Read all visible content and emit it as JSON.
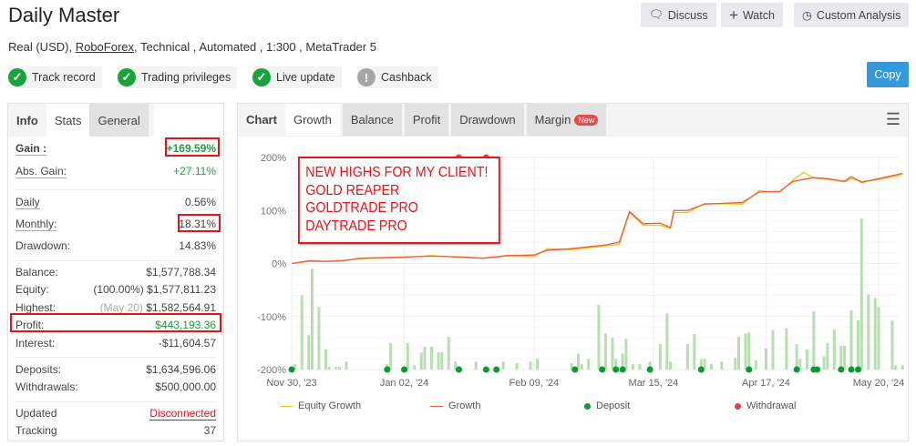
{
  "header": {
    "title": "Daily Master",
    "discuss": "Discuss",
    "watch": "Watch",
    "custom_analysis": "Custom Analysis",
    "sub_prefix": "Real (USD),",
    "broker": "RoboForex",
    "sub_suffix": ", Technical , Automated , 1:300 , MetaTrader 5",
    "badges": [
      {
        "label": "Track record",
        "status": "ok"
      },
      {
        "label": "Trading privileges",
        "status": "ok"
      },
      {
        "label": "Live update",
        "status": "ok"
      },
      {
        "label": "Cashback",
        "status": "warn"
      }
    ],
    "copy": "Copy"
  },
  "colors": {
    "green": "#1aa33a",
    "red": "#e3141b",
    "copy_blue": "#3598db",
    "equity": "#f7c21b",
    "growth": "#ef5a3c",
    "bars": "#b6dfae"
  },
  "stats": {
    "tabs": [
      "Info",
      "Stats",
      "General"
    ],
    "gain_label": "Gain :",
    "gain": "+169.59%",
    "abs_gain_label": "Abs. Gain:",
    "abs_gain": "+27.11%",
    "daily_label": "Daily",
    "daily": "0.56%",
    "monthly_label": "Monthly:",
    "monthly": "18.31%",
    "drawdown_label": "Drawdown:",
    "drawdown": "14.83%",
    "balance_label": "Balance:",
    "balance": "$1,577,788.34",
    "equity_label": "Equity:",
    "equity_pct": "(100.00%)",
    "equity": "$1,577,811.23",
    "highest_label": "Highest:",
    "highest_date": "(May 20)",
    "highest": "$1,582,564.91",
    "profit_label": "Profit:",
    "profit": "$443,193.36",
    "interest_label": "Interest:",
    "interest": "-$11,604.57",
    "deposits_label": "Deposits:",
    "deposits": "$1,634,596.06",
    "withdrawals_label": "Withdrawals:",
    "withdrawals": "$500,000.00",
    "updated_label": "Updated",
    "updated": "Disconnected",
    "tracking_label": "Tracking",
    "tracking": "37"
  },
  "chart_tabs": {
    "chart": "Chart",
    "growth": "Growth",
    "balance": "Balance",
    "profit": "Profit",
    "drawdown": "Drawdown",
    "margin": "Margin",
    "new": "New"
  },
  "annotation": [
    "NEW HIGHS FOR MY CLIENT!",
    "GOLD REAPER",
    "GOLDTRADE PRO",
    "DAYTRADE PRO"
  ],
  "chart_data": {
    "type": "line",
    "ylim": [
      -200,
      200
    ],
    "grid": true,
    "legend": "bottom",
    "yticks": [
      "200%",
      "100%",
      "0%",
      "-100%",
      "-200%"
    ],
    "ytick_values": [
      200,
      100,
      0,
      -100,
      -200
    ],
    "xticks": [
      "Nov 30, '23",
      "Jan 02, '24",
      "Feb 09, '24",
      "Mar 15, '24",
      "Apr 17, '24",
      "May 20, '24"
    ],
    "xtick_dates": [
      "2023-11-30",
      "2024-01-02",
      "2024-02-09",
      "2024-03-15",
      "2024-04-17",
      "2024-05-20"
    ],
    "series": [
      {
        "name": "Growth",
        "x": [
          "2023-11-30",
          "2023-12-05",
          "2023-12-10",
          "2023-12-15",
          "2023-12-20",
          "2024-01-01",
          "2024-01-10",
          "2024-01-20",
          "2024-01-25",
          "2024-02-01",
          "2024-02-09",
          "2024-02-13",
          "2024-02-20",
          "2024-03-01",
          "2024-03-05",
          "2024-03-08",
          "2024-03-12",
          "2024-03-17",
          "2024-03-20",
          "2024-03-21",
          "2024-03-25",
          "2024-03-30",
          "2024-04-10",
          "2024-04-15",
          "2024-04-21",
          "2024-04-25",
          "2024-05-01",
          "2024-05-05",
          "2024-05-10",
          "2024-05-12",
          "2024-05-15",
          "2024-05-20",
          "2024-05-27"
        ],
        "y": [
          0,
          5,
          4,
          5,
          10,
          12,
          14,
          12,
          10,
          15,
          16,
          25,
          28,
          35,
          40,
          98,
          75,
          76,
          68,
          100,
          100,
          112,
          115,
          135,
          136,
          155,
          162,
          160,
          155,
          164,
          153,
          160,
          170
        ]
      },
      {
        "name": "Equity Growth",
        "x": [
          "2023-11-30",
          "2023-12-05",
          "2023-12-10",
          "2023-12-15",
          "2023-12-20",
          "2024-01-01",
          "2024-01-10",
          "2024-01-20",
          "2024-01-25",
          "2024-02-01",
          "2024-02-09",
          "2024-02-13",
          "2024-02-20",
          "2024-03-01",
          "2024-03-05",
          "2024-03-08",
          "2024-03-12",
          "2024-03-17",
          "2024-03-20",
          "2024-03-21",
          "2024-03-25",
          "2024-03-30",
          "2024-04-10",
          "2024-04-15",
          "2024-04-21",
          "2024-04-25",
          "2024-04-28",
          "2024-05-01",
          "2024-05-05",
          "2024-05-10",
          "2024-05-12",
          "2024-05-15",
          "2024-05-20",
          "2024-05-27"
        ],
        "y": [
          0,
          4,
          4,
          6,
          9,
          11,
          15,
          11,
          10,
          14,
          13,
          28,
          26,
          33,
          36,
          96,
          72,
          72,
          66,
          96,
          96,
          113,
          112,
          137,
          134,
          158,
          172,
          161,
          159,
          154,
          160,
          155,
          158,
          168
        ]
      }
    ],
    "bars": {
      "x": [
        "2023-12-01",
        "2023-12-03",
        "2023-12-05",
        "2023-12-06",
        "2023-12-08",
        "2023-12-10",
        "2023-12-11",
        "2023-12-13",
        "2023-12-14",
        "2023-12-16",
        "2023-12-28",
        "2023-12-29",
        "2024-01-03",
        "2024-01-05",
        "2024-01-07",
        "2024-01-08",
        "2024-01-10",
        "2024-01-12",
        "2024-01-13",
        "2024-01-15",
        "2024-01-17",
        "2024-01-23",
        "2024-01-31",
        "2024-02-04",
        "2024-02-08",
        "2024-02-10",
        "2024-02-20",
        "2024-02-22",
        "2024-02-23",
        "2024-02-25",
        "2024-02-28",
        "2024-03-01",
        "2024-03-03",
        "2024-03-04",
        "2024-03-06",
        "2024-03-07",
        "2024-03-09",
        "2024-03-11",
        "2024-03-14",
        "2024-03-17",
        "2024-03-19",
        "2024-03-20",
        "2024-03-25",
        "2024-03-27",
        "2024-03-29",
        "2024-03-30",
        "2024-04-01",
        "2024-04-04",
        "2024-04-08",
        "2024-04-09",
        "2024-04-11",
        "2024-04-12",
        "2024-04-14",
        "2024-04-17",
        "2024-04-19",
        "2024-04-23",
        "2024-04-26",
        "2024-04-27",
        "2024-04-29",
        "2024-05-01",
        "2024-05-04",
        "2024-05-05",
        "2024-05-07",
        "2024-05-09",
        "2024-05-10",
        "2024-05-12",
        "2024-05-14",
        "2024-05-15",
        "2024-05-17",
        "2024-05-19",
        "2024-05-20",
        "2024-05-24",
        "2024-05-25",
        "2024-05-27"
      ],
      "y": [
        -190,
        -60,
        -135,
        -10,
        -82,
        -162,
        -195,
        -195,
        -195,
        -185,
        -190,
        -150,
        -150,
        -192,
        -168,
        -157,
        -157,
        -167,
        -167,
        -138,
        -185,
        -185,
        -185,
        -188,
        -185,
        -180,
        -188,
        -170,
        -190,
        -180,
        -78,
        -132,
        -140,
        -180,
        -170,
        -142,
        -190,
        -190,
        -185,
        -152,
        -94,
        -185,
        -152,
        -133,
        -180,
        -180,
        -190,
        -185,
        -178,
        -138,
        -132,
        -130,
        -182,
        -160,
        -125,
        -122,
        -152,
        -180,
        -162,
        -90,
        -175,
        -150,
        -125,
        -155,
        -155,
        -88,
        -107,
        85,
        -58,
        -65,
        -82,
        -108,
        -192,
        -192
      ]
    },
    "deposits": [
      "2023-11-30",
      "2023-12-28",
      "2024-01-02",
      "2024-01-18",
      "2024-01-26",
      "2024-01-29",
      "2024-02-21",
      "2024-02-29",
      "2024-03-04",
      "2024-03-06",
      "2024-03-14",
      "2024-03-29",
      "2024-04-12",
      "2024-04-26",
      "2024-05-01",
      "2024-05-02",
      "2024-05-09",
      "2024-05-12",
      "2024-05-14"
    ],
    "withdrawals": [
      "2024-01-18",
      "2024-01-26"
    ],
    "legend_labels": [
      "Equity Growth",
      "Growth",
      "Deposit",
      "Withdrawal"
    ]
  }
}
